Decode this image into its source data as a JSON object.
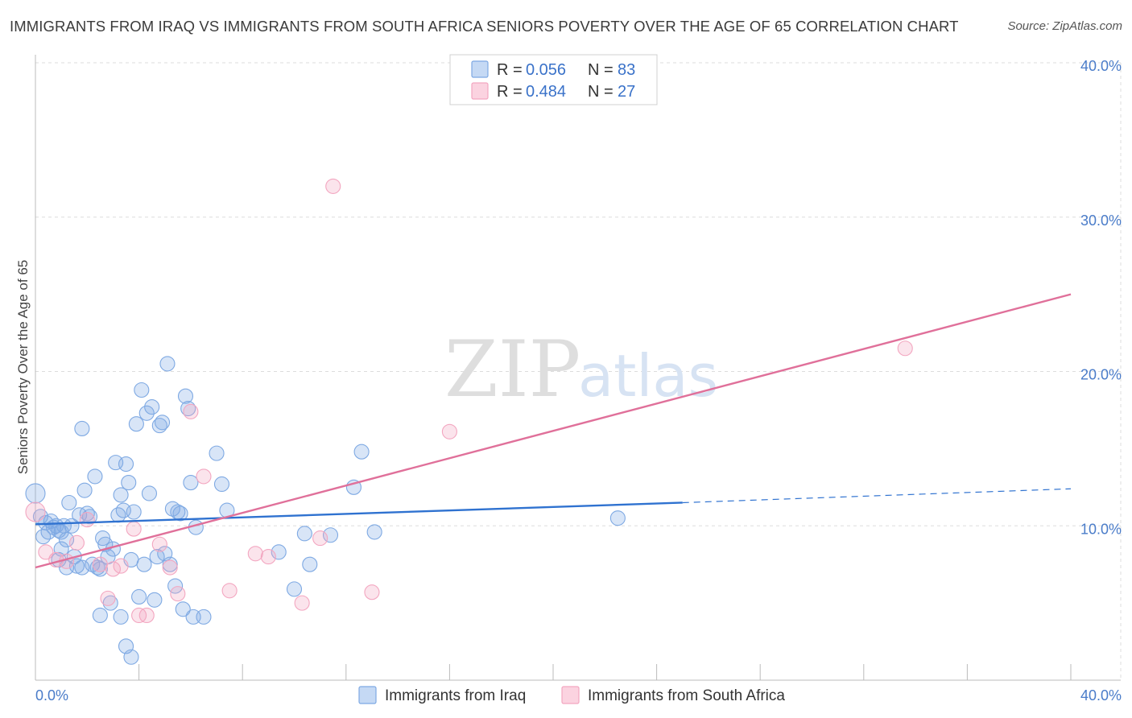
{
  "title": "IMMIGRANTS FROM IRAQ VS IMMIGRANTS FROM SOUTH AFRICA SENIORS POVERTY OVER THE AGE OF 65 CORRELATION CHART",
  "source": "Source: ZipAtlas.com",
  "watermark": {
    "zip": "ZIP",
    "atlas": "atlas"
  },
  "chart_data": {
    "type": "scatter",
    "xlabel": "",
    "ylabel": "Seniors Poverty Over the Age of 65",
    "xlim": [
      0,
      40
    ],
    "ylim": [
      0,
      40
    ],
    "x_tick_labels": [
      "0.0%",
      "40.0%"
    ],
    "y_ticks": [
      10,
      20,
      30,
      40
    ],
    "y_tick_labels": [
      "10.0%",
      "20.0%",
      "30.0%",
      "40.0%"
    ],
    "grid": true,
    "legend_position": "top-center",
    "stats": [
      {
        "r_label": "R =",
        "r": "0.056",
        "n_label": "N =",
        "n": "83"
      },
      {
        "r_label": "R =",
        "r": "0.484",
        "n_label": "N =",
        "n": "27"
      }
    ],
    "series": [
      {
        "name": "Immigrants from Iraq",
        "color": "#7ea9e3",
        "line_color": "#2f72d0",
        "trend": {
          "x0": 0,
          "y0": 10.1,
          "x1": 25,
          "y1": 11.5,
          "dash_to_x": 40,
          "dash_to_y": 12.4
        },
        "points": [
          [
            0.0,
            12.1
          ],
          [
            0.2,
            10.6
          ],
          [
            0.3,
            9.3
          ],
          [
            0.4,
            10.2
          ],
          [
            0.5,
            9.6
          ],
          [
            0.6,
            10.3
          ],
          [
            0.7,
            9.9
          ],
          [
            0.8,
            10.0
          ],
          [
            0.9,
            9.7
          ],
          [
            1.0,
            9.6
          ],
          [
            1.1,
            10.0
          ],
          [
            1.2,
            9.1
          ],
          [
            1.2,
            7.3
          ],
          [
            1.3,
            11.5
          ],
          [
            1.4,
            10.0
          ],
          [
            1.5,
            8.0
          ],
          [
            1.6,
            7.4
          ],
          [
            1.7,
            10.7
          ],
          [
            1.8,
            16.3
          ],
          [
            1.9,
            12.3
          ],
          [
            2.0,
            10.8
          ],
          [
            2.1,
            10.6
          ],
          [
            2.2,
            7.5
          ],
          [
            2.3,
            13.2
          ],
          [
            2.4,
            7.3
          ],
          [
            2.5,
            7.2
          ],
          [
            2.6,
            9.2
          ],
          [
            2.7,
            8.8
          ],
          [
            2.8,
            8.0
          ],
          [
            2.9,
            5.0
          ],
          [
            3.0,
            8.5
          ],
          [
            3.1,
            14.1
          ],
          [
            3.2,
            10.7
          ],
          [
            3.3,
            12.0
          ],
          [
            3.4,
            11.0
          ],
          [
            3.5,
            14.0
          ],
          [
            3.6,
            12.8
          ],
          [
            3.7,
            7.8
          ],
          [
            3.8,
            10.9
          ],
          [
            3.9,
            16.6
          ],
          [
            4.0,
            5.4
          ],
          [
            4.1,
            18.8
          ],
          [
            4.2,
            7.5
          ],
          [
            4.3,
            17.3
          ],
          [
            4.4,
            12.1
          ],
          [
            4.5,
            17.7
          ],
          [
            4.6,
            5.2
          ],
          [
            4.7,
            8.0
          ],
          [
            4.8,
            16.5
          ],
          [
            4.9,
            16.7
          ],
          [
            5.0,
            8.2
          ],
          [
            5.1,
            20.5
          ],
          [
            5.2,
            7.5
          ],
          [
            5.3,
            11.1
          ],
          [
            5.4,
            6.1
          ],
          [
            5.5,
            10.9
          ],
          [
            5.6,
            10.8
          ],
          [
            5.7,
            4.6
          ],
          [
            5.8,
            18.4
          ],
          [
            5.9,
            17.6
          ],
          [
            6.0,
            12.8
          ],
          [
            6.1,
            4.1
          ],
          [
            6.2,
            9.9
          ],
          [
            7.0,
            14.7
          ],
          [
            7.2,
            12.7
          ],
          [
            7.4,
            11.0
          ],
          [
            9.4,
            8.3
          ],
          [
            10.0,
            5.9
          ],
          [
            10.4,
            9.5
          ],
          [
            10.6,
            7.5
          ],
          [
            11.4,
            9.4
          ],
          [
            12.3,
            12.5
          ],
          [
            12.6,
            14.8
          ],
          [
            13.1,
            9.6
          ],
          [
            3.3,
            4.1
          ],
          [
            3.5,
            2.2
          ],
          [
            3.7,
            1.5
          ],
          [
            2.5,
            4.2
          ],
          [
            1.0,
            8.5
          ],
          [
            0.9,
            7.8
          ],
          [
            1.8,
            7.3
          ],
          [
            22.5,
            10.5
          ],
          [
            6.5,
            4.1
          ]
        ]
      },
      {
        "name": "Immigrants from South Africa",
        "color": "#f3a6c0",
        "line_color": "#e0709a",
        "trend": {
          "x0": 0,
          "y0": 7.3,
          "x1": 40,
          "y1": 25.0
        },
        "points": [
          [
            0.0,
            10.9
          ],
          [
            0.4,
            8.3
          ],
          [
            0.8,
            7.8
          ],
          [
            1.2,
            7.7
          ],
          [
            1.6,
            8.9
          ],
          [
            2.0,
            10.4
          ],
          [
            2.5,
            7.5
          ],
          [
            2.8,
            5.3
          ],
          [
            3.0,
            7.2
          ],
          [
            3.3,
            7.4
          ],
          [
            3.8,
            9.8
          ],
          [
            4.0,
            4.2
          ],
          [
            4.3,
            4.2
          ],
          [
            4.8,
            8.8
          ],
          [
            5.2,
            7.3
          ],
          [
            5.5,
            5.6
          ],
          [
            6.0,
            17.4
          ],
          [
            6.5,
            13.2
          ],
          [
            7.5,
            5.8
          ],
          [
            8.5,
            8.2
          ],
          [
            9.0,
            8.0
          ],
          [
            10.3,
            5.0
          ],
          [
            11.0,
            9.2
          ],
          [
            11.5,
            32.0
          ],
          [
            13.0,
            5.7
          ],
          [
            16.0,
            16.1
          ],
          [
            33.6,
            21.5
          ]
        ]
      }
    ]
  }
}
